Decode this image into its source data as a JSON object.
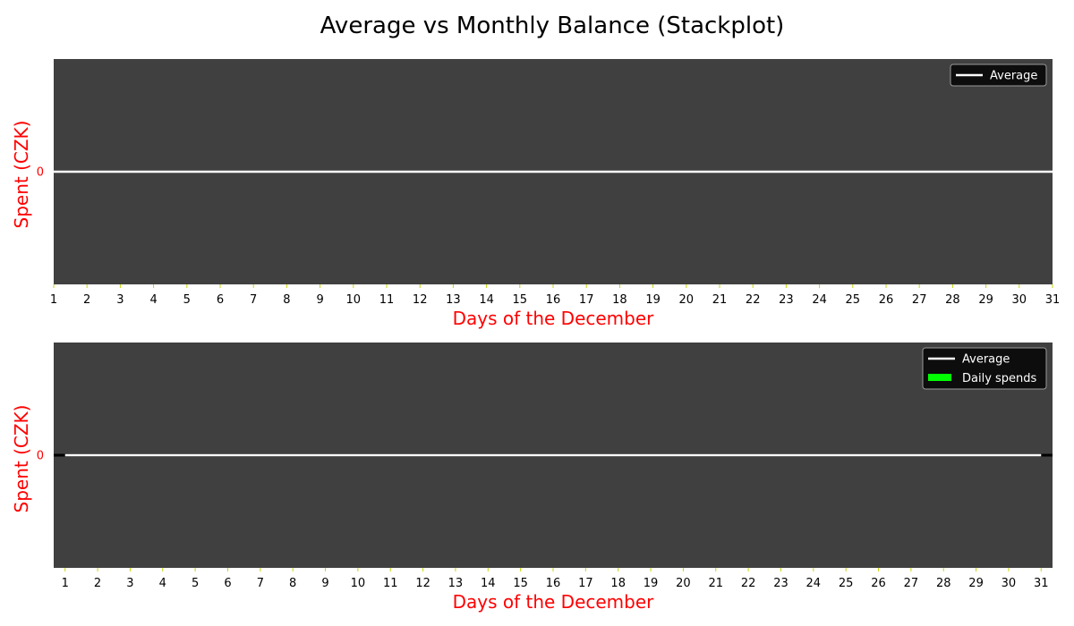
{
  "figure": {
    "title": "Average vs Monthly Balance (Stackplot)"
  },
  "theme": {
    "plot_background": "#404040",
    "label_color": "#ff0000",
    "tick_mark_color": "#c8d400",
    "legend_background": "#0d0d0d",
    "average_line_color": "#ffffff",
    "daily_spends_color": "#00ff00",
    "baseline_color": "#000000"
  },
  "chart_data": [
    {
      "type": "line",
      "title": "",
      "xlabel": "Days of the December",
      "ylabel": "Spent (CZK)",
      "x": [
        1,
        2,
        3,
        4,
        5,
        6,
        7,
        8,
        9,
        10,
        11,
        12,
        13,
        14,
        15,
        16,
        17,
        18,
        19,
        20,
        21,
        22,
        23,
        24,
        25,
        26,
        27,
        28,
        29,
        30,
        31
      ],
      "xlim": [
        1,
        31
      ],
      "ylim": [
        -0.055,
        0.055
      ],
      "yticks": [
        0
      ],
      "series": [
        {
          "name": "Average",
          "values": [
            0,
            0,
            0,
            0,
            0,
            0,
            0,
            0,
            0,
            0,
            0,
            0,
            0,
            0,
            0,
            0,
            0,
            0,
            0,
            0,
            0,
            0,
            0,
            0,
            0,
            0,
            0,
            0,
            0,
            0,
            0
          ],
          "color": "#ffffff"
        }
      ],
      "legend": "top-right",
      "grid": false
    },
    {
      "type": "area",
      "title": "",
      "xlabel": "Days of the December",
      "ylabel": "Spent (CZK)",
      "x": [
        1,
        2,
        3,
        4,
        5,
        6,
        7,
        8,
        9,
        10,
        11,
        12,
        13,
        14,
        15,
        16,
        17,
        18,
        19,
        20,
        21,
        22,
        23,
        24,
        25,
        26,
        27,
        28,
        29,
        30,
        31
      ],
      "xlim": [
        0.65,
        31.35
      ],
      "ylim": [
        -0.055,
        0.055
      ],
      "yticks": [
        0
      ],
      "series": [
        {
          "name": "Average",
          "kind": "line",
          "values": [
            0,
            0,
            0,
            0,
            0,
            0,
            0,
            0,
            0,
            0,
            0,
            0,
            0,
            0,
            0,
            0,
            0,
            0,
            0,
            0,
            0,
            0,
            0,
            0,
            0,
            0,
            0,
            0,
            0,
            0,
            0
          ],
          "color": "#ffffff"
        },
        {
          "name": "Daily spends",
          "kind": "stack",
          "values": [
            0,
            0,
            0,
            0,
            0,
            0,
            0,
            0,
            0,
            0,
            0,
            0,
            0,
            0,
            0,
            0,
            0,
            0,
            0,
            0,
            0,
            0,
            0,
            0,
            0,
            0,
            0,
            0,
            0,
            0,
            0
          ],
          "color": "#00ff00"
        }
      ],
      "legend": "top-right",
      "grid": false
    }
  ]
}
